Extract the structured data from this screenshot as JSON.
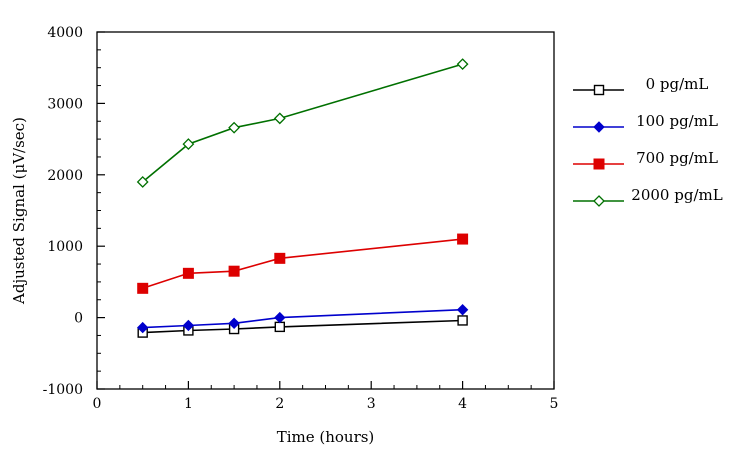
{
  "chart_data": {
    "type": "line",
    "title": "",
    "xlabel": "Time (hours)",
    "ylabel": "Adjusted Signal (μV/sec)",
    "xlim": [
      0,
      5
    ],
    "ylim": [
      -1000,
      4000
    ],
    "xticks": [
      "0",
      "1",
      "2",
      "3",
      "4",
      "5"
    ],
    "yticks": [
      "-1000",
      "0",
      "1000",
      "2000",
      "3000",
      "4000"
    ],
    "grid": false,
    "legend_position": "right",
    "series": [
      {
        "name": "0 pg/mL",
        "color": "#000000",
        "marker": "open-square",
        "x": [
          0.5,
          1.0,
          1.5,
          2.0,
          4.0
        ],
        "y": [
          -210,
          -180,
          -160,
          -130,
          -40
        ]
      },
      {
        "name": "100 pg/mL",
        "color": "#0000cc",
        "marker": "filled-diamond",
        "x": [
          0.5,
          1.0,
          1.5,
          2.0,
          4.0
        ],
        "y": [
          -140,
          -110,
          -80,
          0,
          110
        ]
      },
      {
        "name": "700 pg/mL",
        "color": "#dd0000",
        "marker": "filled-square",
        "x": [
          0.5,
          1.0,
          1.5,
          2.0,
          4.0
        ],
        "y": [
          410,
          620,
          650,
          830,
          1100
        ]
      },
      {
        "name": "2000 pg/mL",
        "color": "#007000",
        "marker": "open-diamond",
        "x": [
          0.5,
          1.0,
          1.5,
          2.0,
          4.0
        ],
        "y": [
          1900,
          2430,
          2660,
          2790,
          3550
        ]
      }
    ]
  }
}
